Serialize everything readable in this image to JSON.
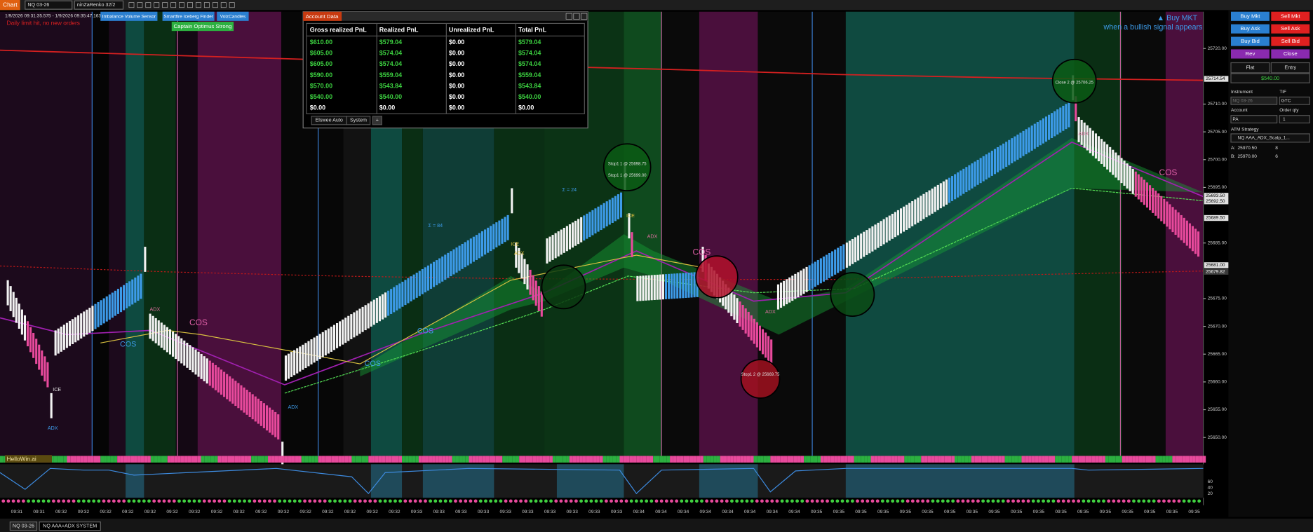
{
  "toolbar": {
    "tab": "Chart",
    "instrument": "NQ 03-26",
    "bar_type": "ninZaRenko 32/2"
  },
  "chart": {
    "range": "1/9/2026 09:31:35.575 - 1/9/2026 09:35:47.163",
    "status": "Daily limit hit, no new orders",
    "indicator_buttons": [
      "Imbalance Volume Sensor",
      "Smartfire Iceberg Finder",
      "VolzCandles"
    ],
    "captain": "Captain Optimus Strong",
    "signal_title": "▲ Buy MKT",
    "signal_text": "when a bullish signal appears",
    "price_labels": [
      "25720.00",
      "25710.00",
      "25705.00",
      "25700.00",
      "25695.00",
      "25685.00",
      "25675.00",
      "25670.00",
      "25665.00",
      "25660.00",
      "25655.00",
      "25650.00"
    ],
    "price_tags": [
      "25714.54",
      "25693.50",
      "25692.50",
      "25689.50",
      "25681.00",
      "25679.82"
    ],
    "annotations": [
      "COS",
      "COS",
      "COS",
      "COS",
      "COS",
      "COS",
      "ADX",
      "ADX",
      "ADX",
      "ADX",
      "ADX",
      "ADX",
      "ADX",
      "ICE",
      "ICE",
      "ICE",
      "Stop1 1 @ 25698.75",
      "Stop1 1 @ 25699.00",
      "Close 2 @ 25706.25",
      "Stop1 2 @ 25669.75",
      "Σ = 24",
      "Σ = 84"
    ],
    "time_labels": [
      "09:31",
      "09:31",
      "09:32",
      "09:32",
      "09:32",
      "09:32",
      "09:32",
      "09:32",
      "09:32",
      "09:32",
      "09:32",
      "09:32",
      "09:32",
      "09:32",
      "09:32",
      "09:32",
      "09:32",
      "09:32",
      "09:33",
      "09:33",
      "09:33",
      "09:33",
      "09:33",
      "09:33",
      "09:33",
      "09:33",
      "09:33",
      "09:33",
      "09:34",
      "09:34",
      "09:34",
      "09:34",
      "09:34",
      "09:34",
      "09:34",
      "09:34",
      "09:35",
      "09:35",
      "09:35",
      "09:35",
      "09:35",
      "09:35",
      "09:35",
      "09:35",
      "09:35",
      "09:35",
      "09:35",
      "09:35",
      "09:35",
      "09:35",
      "09:35",
      "09:35",
      "09:35",
      "09:35"
    ],
    "indicator_label": "HelloWin.ai",
    "indicator_levels": [
      "60",
      "40",
      "20"
    ]
  },
  "account_data": {
    "title": "Account Data",
    "columns": [
      "Gross realized PnL",
      "Realized PnL",
      "Unrealized PnL",
      "Total PnL"
    ],
    "rows": [
      [
        "$610.00",
        "$579.04",
        "$0.00",
        "$579.04"
      ],
      [
        "$605.00",
        "$574.04",
        "$0.00",
        "$574.04"
      ],
      [
        "$605.00",
        "$574.04",
        "$0.00",
        "$574.04"
      ],
      [
        "$590.00",
        "$559.04",
        "$0.00",
        "$559.04"
      ],
      [
        "$570.00",
        "$543.84",
        "$0.00",
        "$543.84"
      ],
      [
        "$540.00",
        "$540.00",
        "$0.00",
        "$540.00"
      ],
      [
        "$0.00",
        "$0.00",
        "$0.00",
        "$0.00"
      ]
    ],
    "tabs": [
      "Elswee Auto",
      "System",
      "+"
    ]
  },
  "order_panel": {
    "buttons": [
      [
        "Buy Mkt",
        "Sell Mkt"
      ],
      [
        "Buy Ask",
        "Sell Ask"
      ],
      [
        "Buy Bid",
        "Sell Bid"
      ],
      [
        "Rev",
        "Close"
      ]
    ],
    "position": [
      "Flat",
      "Entry"
    ],
    "pnl": "$540.00",
    "instrument_label": "Instrument",
    "tif_label": "TIF",
    "instrument": "NQ 03-26",
    "tif": "GTC",
    "account_label": "Account",
    "qty_label": "Order qty",
    "account": "PA",
    "qty": "1",
    "atm_label": "ATM Strategy",
    "atm": "NQ AAA_ADX_Scalp_1...",
    "levels": [
      [
        "A:",
        "25970.50",
        "8"
      ],
      [
        "B:",
        "25970.00",
        "6"
      ]
    ]
  },
  "bottom_tabs": [
    "NQ 03-26",
    "NQ AAA+ADX SYSTEM"
  ]
}
